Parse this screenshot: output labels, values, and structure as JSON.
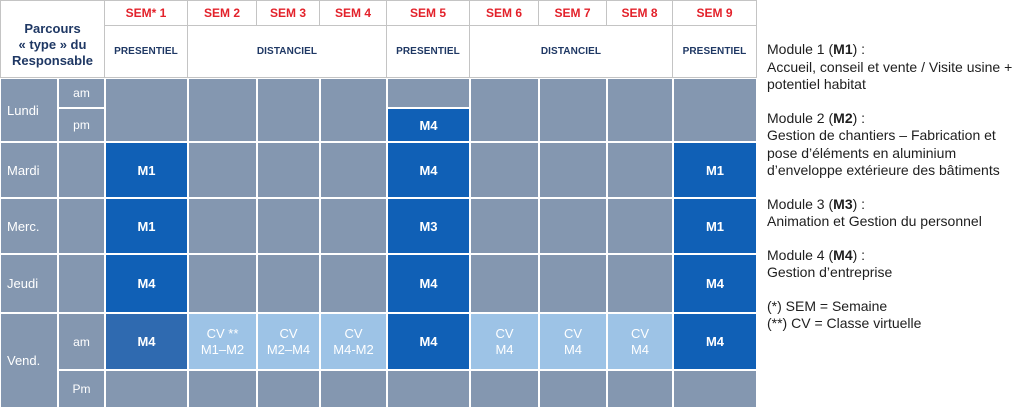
{
  "colors": {
    "week_label_red": "#e3222b",
    "header_navy": "#1f3864",
    "header_border": "#c4c4c4",
    "empty_cell": "#8497b0",
    "presentiel_cell": "#1060b6",
    "presentiel_cell_alt": "#2f6ab0",
    "virtual_class_cell": "#9dc3e6",
    "cell_text": "#ffffff",
    "legend_text": "#1e1e1e"
  },
  "table": {
    "corner_label": [
      "Parcours",
      "« type » du",
      "Responsable"
    ],
    "weeks": [
      "SEM* 1",
      "SEM 2",
      "SEM 3",
      "SEM 4",
      "SEM 5",
      "SEM 6",
      "SEM 7",
      "SEM 8",
      "SEM 9"
    ],
    "modes": [
      "PRESENTIEL",
      "DISTANCIEL",
      "PRESENTIEL",
      "DISTANCIEL",
      "PRESENTIEL"
    ],
    "days": [
      {
        "label": "Lundi",
        "slots": [
          "am",
          "pm"
        ]
      },
      {
        "label": "Mardi"
      },
      {
        "label": "Merc."
      },
      {
        "label": "Jeudi"
      },
      {
        "label": "Vend.",
        "slots": [
          "am",
          "Pm"
        ]
      }
    ],
    "sessions": {
      "lundi_pm": {
        "sem5": "M4"
      },
      "mardi": {
        "sem1": "M1",
        "sem5": "M4",
        "sem9": "M1"
      },
      "mercredi": {
        "sem1": "M1",
        "sem5": "M3",
        "sem9": "M1"
      },
      "jeudi": {
        "sem1": "M4",
        "sem5": "M4",
        "sem9": "M4"
      },
      "vendredi_am": {
        "sem1": "M4",
        "sem2": {
          "label": "CV **",
          "modules": "M1–M2"
        },
        "sem3": {
          "label": "CV",
          "modules": "M2–M4"
        },
        "sem4": {
          "label": "CV",
          "modules": "M4-M2"
        },
        "sem5": "M4",
        "sem6": {
          "label": "CV",
          "modules": "M4"
        },
        "sem7": {
          "label": "CV",
          "modules": "M4"
        },
        "sem8": {
          "label": "CV",
          "modules": "M4"
        },
        "sem9": "M4"
      }
    }
  },
  "legend": {
    "modules": [
      {
        "heading": "Module 1 (",
        "code": "M1",
        "heading_end": ") :",
        "description": [
          "Accueil, conseil et vente / Visite usine +",
          "potentiel habitat"
        ]
      },
      {
        "heading": "Module 2 (",
        "code": "M2",
        "heading_end": ") :",
        "description": [
          "Gestion de chantiers – Fabrication et",
          "pose d’éléments en aluminium",
          "d’enveloppe extérieure des bâtiments"
        ]
      },
      {
        "heading": "Module 3 (",
        "code": "M3",
        "heading_end": ") :",
        "description": [
          "Animation et Gestion du personnel"
        ]
      },
      {
        "heading": "Module 4 (",
        "code": "M4",
        "heading_end": ") :",
        "description": [
          "Gestion d’entreprise"
        ]
      }
    ],
    "notes": [
      "(*) SEM = Semaine",
      "(**) CV = Classe virtuelle"
    ]
  }
}
